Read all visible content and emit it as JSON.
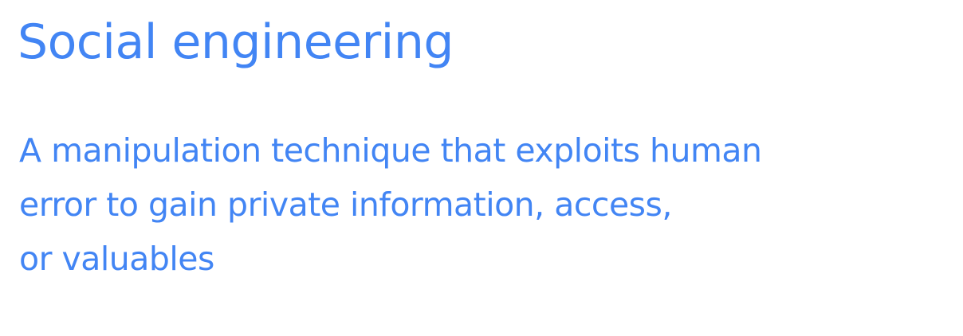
{
  "theme": {
    "accent_color": "#4285f4",
    "background_color": "#ffffff"
  },
  "slide": {
    "title": "Social engineering",
    "definition_lines": [
      "A manipulation technique that exploits human",
      "error to gain private information, access,",
      "or valuables"
    ]
  }
}
